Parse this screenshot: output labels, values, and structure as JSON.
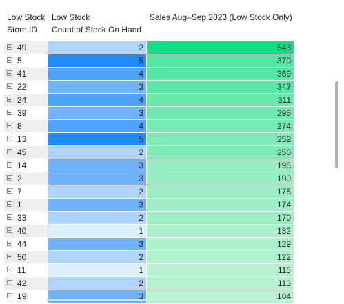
{
  "table": {
    "headers": {
      "store_id": [
        "Low Stock",
        "Store ID"
      ],
      "count": [
        "Low Stock",
        "Count of Stock On Hand"
      ],
      "sales": [
        "",
        "Sales Aug–Sep 2023 (Low Stock Only)"
      ]
    },
    "rows": [
      {
        "store_id": "49",
        "count": "2",
        "sales": "543"
      },
      {
        "store_id": "5",
        "count": "5",
        "sales": "370"
      },
      {
        "store_id": "41",
        "count": "4",
        "sales": "369"
      },
      {
        "store_id": "22",
        "count": "3",
        "sales": "347"
      },
      {
        "store_id": "24",
        "count": "4",
        "sales": "311"
      },
      {
        "store_id": "39",
        "count": "3",
        "sales": "295"
      },
      {
        "store_id": "8",
        "count": "4",
        "sales": "274"
      },
      {
        "store_id": "13",
        "count": "5",
        "sales": "252"
      },
      {
        "store_id": "45",
        "count": "2",
        "sales": "250"
      },
      {
        "store_id": "14",
        "count": "3",
        "sales": "195"
      },
      {
        "store_id": "2",
        "count": "3",
        "sales": "190"
      },
      {
        "store_id": "7",
        "count": "2",
        "sales": "175"
      },
      {
        "store_id": "1",
        "count": "3",
        "sales": "174"
      },
      {
        "store_id": "33",
        "count": "2",
        "sales": "170"
      },
      {
        "store_id": "40",
        "count": "1",
        "sales": "132"
      },
      {
        "store_id": "44",
        "count": "3",
        "sales": "129"
      },
      {
        "store_id": "50",
        "count": "2",
        "sales": "122"
      },
      {
        "store_id": "11",
        "count": "1",
        "sales": "115"
      },
      {
        "store_id": "42",
        "count": "2",
        "sales": "113"
      },
      {
        "store_id": "19",
        "count": "3",
        "sales": "104"
      }
    ]
  },
  "colors": {
    "count_scale": {
      "1": "#ddeeff",
      "2": "#aed4ff",
      "3": "#6fb3ff",
      "4": "#4ea3ff",
      "5": "#1e8cff"
    },
    "sales_min": "#b9f1d1",
    "sales_max": "#12df85",
    "divider": "#5b9bd5"
  }
}
